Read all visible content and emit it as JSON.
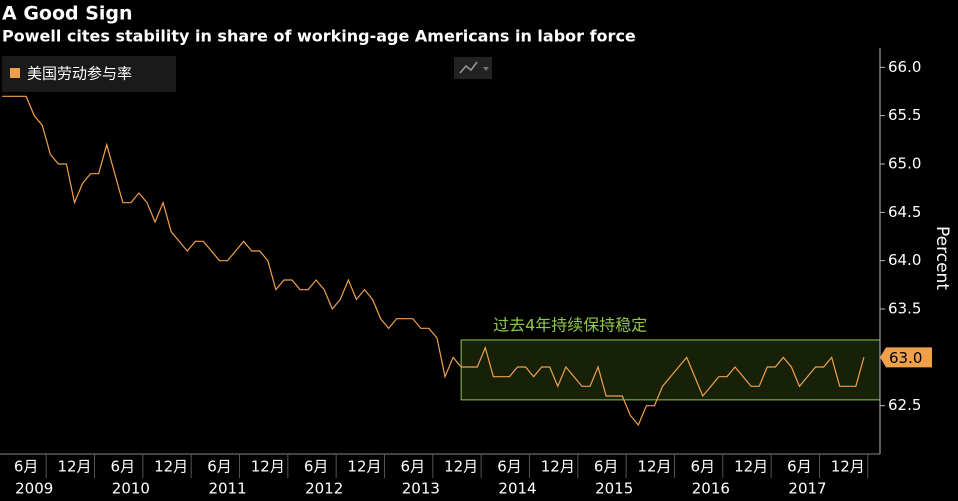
{
  "chart_data": {
    "type": "line",
    "title": "A Good Sign",
    "subtitle": "Powell cites stability in share of working-age Americans in labor force",
    "y_axis_label": "Percent",
    "annotation": "过去4年持续保持稳定",
    "x": [
      "2009-03",
      "2009-04",
      "2009-05",
      "2009-06",
      "2009-07",
      "2009-08",
      "2009-09",
      "2009-10",
      "2009-11",
      "2009-12",
      "2010-01",
      "2010-02",
      "2010-03",
      "2010-04",
      "2010-05",
      "2010-06",
      "2010-07",
      "2010-08",
      "2010-09",
      "2010-10",
      "2010-11",
      "2010-12",
      "2011-01",
      "2011-02",
      "2011-03",
      "2011-04",
      "2011-05",
      "2011-06",
      "2011-07",
      "2011-08",
      "2011-09",
      "2011-10",
      "2011-11",
      "2011-12",
      "2012-01",
      "2012-02",
      "2012-03",
      "2012-04",
      "2012-05",
      "2012-06",
      "2012-07",
      "2012-08",
      "2012-09",
      "2012-10",
      "2012-11",
      "2012-12",
      "2013-01",
      "2013-02",
      "2013-03",
      "2013-04",
      "2013-05",
      "2013-06",
      "2013-07",
      "2013-08",
      "2013-09",
      "2013-10",
      "2013-11",
      "2013-12",
      "2014-01",
      "2014-02",
      "2014-03",
      "2014-04",
      "2014-05",
      "2014-06",
      "2014-07",
      "2014-08",
      "2014-09",
      "2014-10",
      "2014-11",
      "2014-12",
      "2015-01",
      "2015-02",
      "2015-03",
      "2015-04",
      "2015-05",
      "2015-06",
      "2015-07",
      "2015-08",
      "2015-09",
      "2015-10",
      "2015-11",
      "2015-12",
      "2016-01",
      "2016-02",
      "2016-03",
      "2016-04",
      "2016-05",
      "2016-06",
      "2016-07",
      "2016-08",
      "2016-09",
      "2016-10",
      "2016-11",
      "2016-12",
      "2017-01",
      "2017-02",
      "2017-03",
      "2017-04",
      "2017-05",
      "2017-06",
      "2017-07",
      "2017-08",
      "2017-09",
      "2017-10",
      "2017-11",
      "2017-12",
      "2018-01",
      "2018-02"
    ],
    "series": [
      {
        "name": "美国劳动参与率",
        "color": "#f0a04b",
        "values": [
          65.7,
          65.7,
          65.7,
          65.7,
          65.5,
          65.4,
          65.1,
          65.0,
          65.0,
          64.6,
          64.8,
          64.9,
          64.9,
          65.2,
          64.9,
          64.6,
          64.6,
          64.7,
          64.6,
          64.4,
          64.6,
          64.3,
          64.2,
          64.1,
          64.2,
          64.2,
          64.1,
          64.0,
          64.0,
          64.1,
          64.2,
          64.1,
          64.1,
          64.0,
          63.7,
          63.8,
          63.8,
          63.7,
          63.7,
          63.8,
          63.7,
          63.5,
          63.6,
          63.8,
          63.6,
          63.7,
          63.6,
          63.4,
          63.3,
          63.4,
          63.4,
          63.4,
          63.3,
          63.3,
          63.2,
          62.8,
          63.0,
          62.9,
          62.9,
          62.9,
          63.1,
          62.8,
          62.8,
          62.8,
          62.9,
          62.9,
          62.8,
          62.9,
          62.9,
          62.7,
          62.9,
          62.8,
          62.7,
          62.7,
          62.9,
          62.6,
          62.6,
          62.6,
          62.4,
          62.3,
          62.5,
          62.5,
          62.7,
          62.8,
          62.9,
          63.0,
          62.8,
          62.6,
          62.7,
          62.8,
          62.8,
          62.9,
          62.8,
          62.7,
          62.7,
          62.9,
          62.9,
          63.0,
          62.9,
          62.7,
          62.8,
          62.9,
          62.9,
          63.0,
          62.7,
          62.7,
          62.7,
          63.0
        ],
        "last_value_label": "63.0"
      }
    ],
    "highlight": {
      "from": "2013-12",
      "ylim": [
        62.56,
        63.18
      ],
      "color": "#8fc74a"
    },
    "xlim": [
      "2009-03",
      "2018-04"
    ],
    "ylim": [
      62.0,
      66.2
    ],
    "yticks": [
      {
        "value": 62.5,
        "label": "62.5"
      },
      {
        "value": 63,
        "label": "63.0"
      },
      {
        "value": 63.5,
        "label": "63.5"
      },
      {
        "value": 64,
        "label": "64.0"
      },
      {
        "value": 64.5,
        "label": "64.5"
      },
      {
        "value": 65,
        "label": "65.0"
      },
      {
        "value": 65.5,
        "label": "65.5"
      },
      {
        "value": 66,
        "label": "66.0"
      }
    ],
    "xticks": [
      {
        "value": "2009-06",
        "label": "6月"
      },
      {
        "value": "2009-12",
        "label": "12月"
      },
      {
        "value": "2010-06",
        "label": "6月"
      },
      {
        "value": "2010-12",
        "label": "12月"
      },
      {
        "value": "2011-06",
        "label": "6月"
      },
      {
        "value": "2011-12",
        "label": "12月"
      },
      {
        "value": "2012-06",
        "label": "6月"
      },
      {
        "value": "2012-12",
        "label": "12月"
      },
      {
        "value": "2013-06",
        "label": "6月"
      },
      {
        "value": "2013-12",
        "label": "12月"
      },
      {
        "value": "2014-06",
        "label": "6月"
      },
      {
        "value": "2014-12",
        "label": "12月"
      },
      {
        "value": "2015-06",
        "label": "6月"
      },
      {
        "value": "2015-12",
        "label": "12月"
      },
      {
        "value": "2016-06",
        "label": "6月"
      },
      {
        "value": "2016-12",
        "label": "12月"
      },
      {
        "value": "2017-06",
        "label": "6月"
      },
      {
        "value": "2017-12",
        "label": "12月"
      }
    ],
    "years": [
      "2009",
      "2010",
      "2011",
      "2012",
      "2013",
      "2014",
      "2015",
      "2016",
      "2017"
    ]
  }
}
